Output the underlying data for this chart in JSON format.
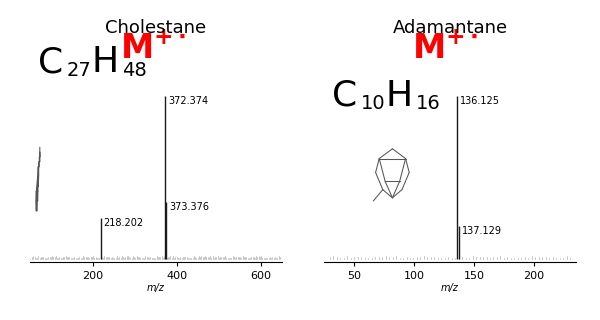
{
  "chol": {
    "title": "Cholestane",
    "xmin": 50,
    "xmax": 650,
    "xticks": [
      200,
      400,
      600
    ],
    "peaks": [
      {
        "mz": 218.202,
        "intensity": 0.25,
        "label": "218.202"
      },
      {
        "mz": 372.374,
        "intensity": 1.0,
        "label": "372.374",
        "mplus": true
      },
      {
        "mz": 373.376,
        "intensity": 0.35,
        "label": "373.376"
      }
    ]
  },
  "adam": {
    "title": "Adamantane",
    "xmin": 25,
    "xmax": 235,
    "xticks": [
      50,
      100,
      150,
      200
    ],
    "peaks": [
      {
        "mz": 136.125,
        "intensity": 1.0,
        "label": "136.125",
        "mplus": true
      },
      {
        "mz": 137.129,
        "intensity": 0.2,
        "label": "137.129"
      }
    ]
  },
  "xlabel": "m/z",
  "bar_color": "#1a1a1a",
  "noise_color": "#999999",
  "mplus_color": "#ff0000",
  "label_fontsize": 7,
  "title_fontsize": 13,
  "formula_fontsize": 26,
  "formula_sub_fontsize": 14,
  "mplus_fontsize": 24,
  "axis_label_fontsize": 7,
  "tick_fontsize": 8,
  "background": "#ffffff"
}
